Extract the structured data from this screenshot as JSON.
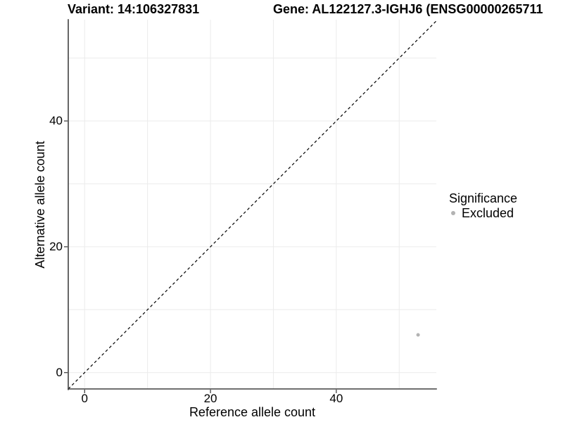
{
  "titles": {
    "left": "Variant: 14:106327831",
    "right": "Gene: AL122127.3-IGHJ6 (ENSG00000265711"
  },
  "legend": {
    "title": "Significance",
    "items": [
      {
        "label": "Excluded",
        "color": "#b3b3b3"
      }
    ]
  },
  "chart_data": {
    "type": "scatter",
    "title_left": "Variant: 14:106327831",
    "title_right": "Gene: AL122127.3-IGHJ6 (ENSG00000265711",
    "xlabel": "Reference allele count",
    "ylabel": "Alternative allele count",
    "xlim": [
      -2.6,
      55.9
    ],
    "ylim": [
      -2.6,
      56.1
    ],
    "x_ticks": [
      0,
      20,
      40
    ],
    "y_ticks": [
      0,
      20,
      40
    ],
    "grid_x": [
      0,
      10,
      20,
      30,
      40,
      50
    ],
    "grid_y": [
      0,
      10,
      20,
      30,
      40,
      50
    ],
    "grid_color": "#ebebeb",
    "axis_line_color": "#404040",
    "tick_mark_color": "#333333",
    "identity_line": {
      "slope": 1,
      "intercept": 0,
      "style": "dashed",
      "color": "#000000"
    },
    "series": [
      {
        "name": "Excluded",
        "color": "#b3b3b3",
        "point_radius": 2.5,
        "points": [
          {
            "x": 53,
            "y": 6
          }
        ]
      }
    ],
    "legend_title": "Significance",
    "legend_position": "right",
    "background": "#ffffff"
  }
}
